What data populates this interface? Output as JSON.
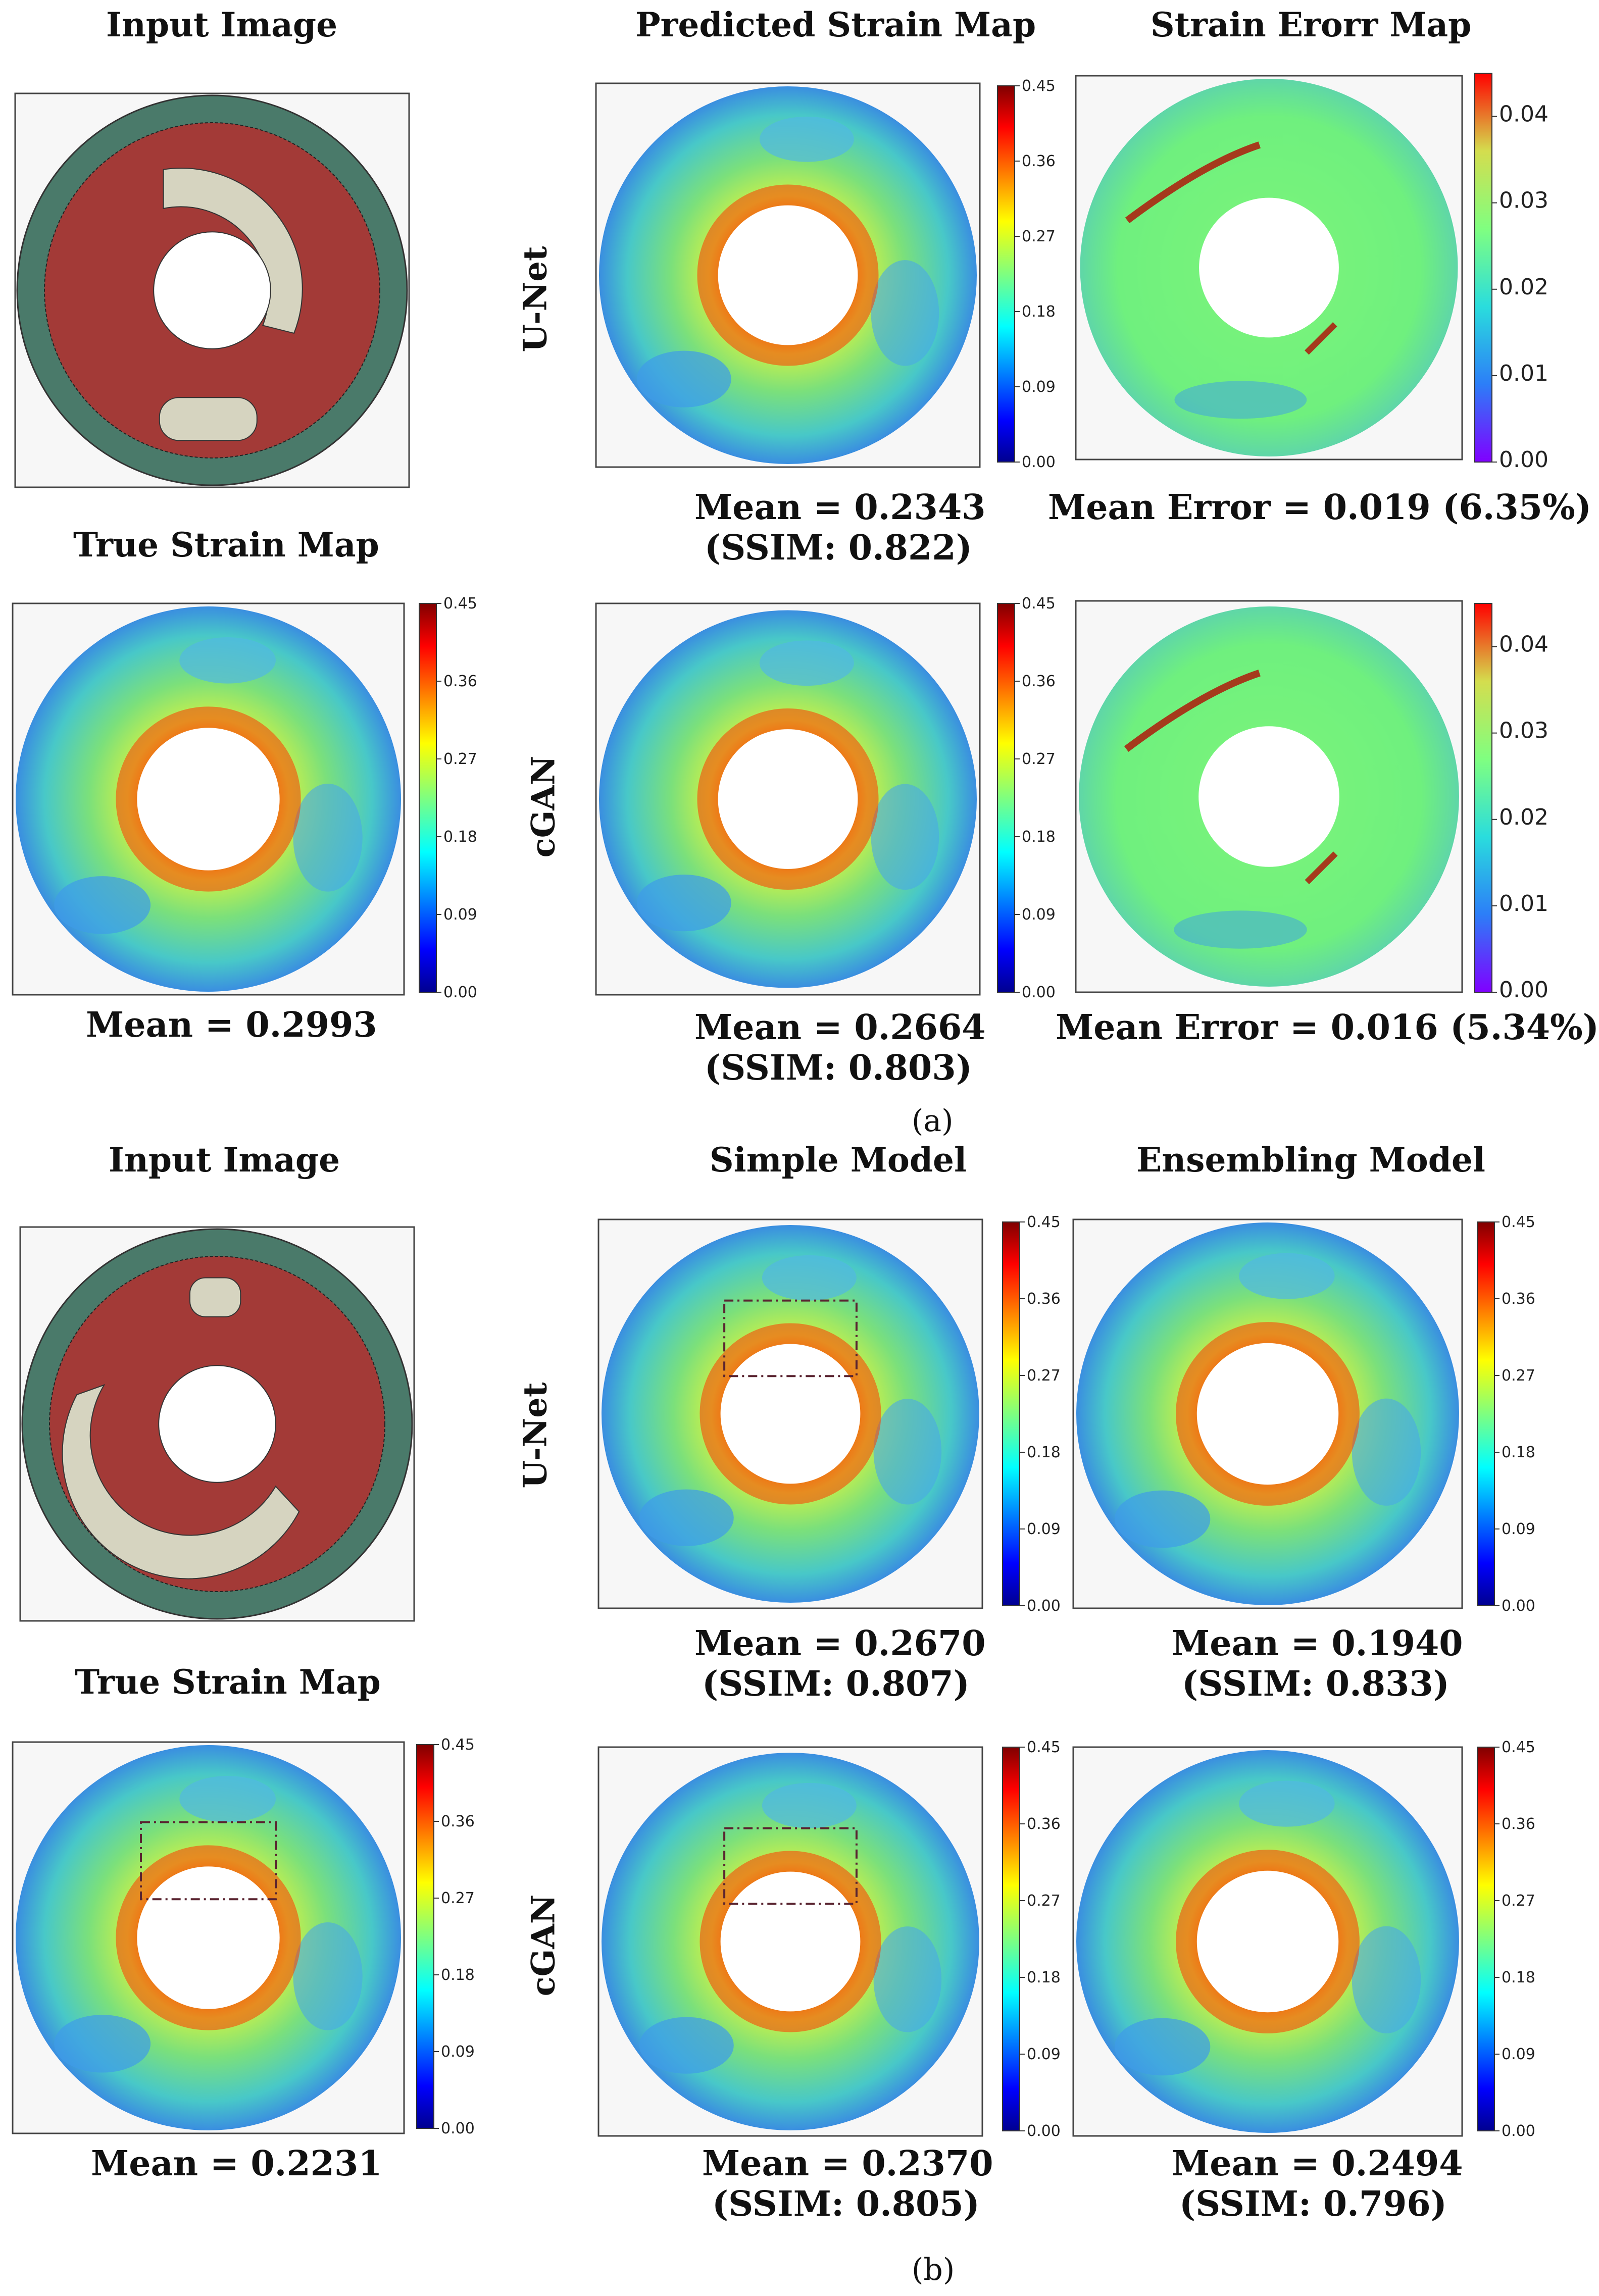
{
  "figure": {
    "a": {
      "titles": {
        "input": "Input Image",
        "predicted": "Predicted Strain Map",
        "error": "Strain Erorr Map",
        "true": "True Strain Map"
      },
      "row_labels": [
        "U-Net",
        "cGAN"
      ],
      "captions": {
        "true_mean": "Mean = 0.2993",
        "unet_mean": "Mean = 0.2343",
        "unet_ssim": "(SSIM: 0.822)",
        "unet_error": "Mean Error  = 0.019 (6.35%)",
        "cgan_mean": "Mean = 0.2664",
        "cgan_ssim": "(SSIM: 0.803)",
        "cgan_error": "Mean Error  = 0.016 (5.34%)"
      },
      "label": "(a)"
    },
    "b": {
      "titles": {
        "input": "Input Image",
        "simple": "Simple Model",
        "ensemble": "Ensembling Model",
        "true": "True Strain Map"
      },
      "row_labels": [
        "U-Net",
        "cGAN"
      ],
      "captions": {
        "true_mean": "Mean = 0.2231",
        "unet_simple_mean": "Mean = 0.2670",
        "unet_simple_ssim": "(SSIM: 0.807)",
        "unet_ens_mean": "Mean = 0.1940",
        "unet_ens_ssim": "(SSIM: 0.833)",
        "cgan_simple_mean": "Mean = 0.2370",
        "cgan_simple_ssim": "(SSIM: 0.805)",
        "cgan_ens_mean": "Mean = 0.2494",
        "cgan_ens_ssim": "(SSIM: 0.796)"
      },
      "label": "(b)"
    }
  },
  "colorbars": {
    "strain_ticks": [
      "0.45",
      "0.36",
      "0.27",
      "0.18",
      "0.09",
      "0.00"
    ],
    "error_ticks": [
      "0.04",
      "0.03",
      "0.02",
      "0.01",
      "0.00"
    ]
  },
  "colors": {
    "ring": "#4a7a6a",
    "matrix": "#a33a37",
    "inclusion": "#d6d4c0",
    "jet_low": "#00008f",
    "jet_high": "#800000"
  }
}
